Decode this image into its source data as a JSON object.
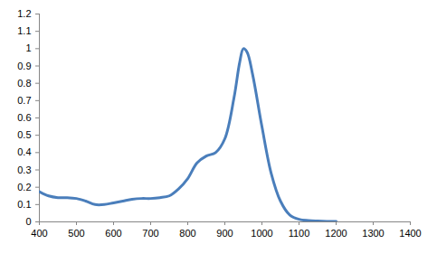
{
  "chart_data": {
    "type": "line",
    "x": [
      400,
      425,
      450,
      475,
      500,
      525,
      550,
      575,
      600,
      625,
      650,
      675,
      700,
      725,
      750,
      775,
      800,
      825,
      850,
      875,
      900,
      925,
      940,
      950,
      960,
      975,
      1000,
      1025,
      1050,
      1075,
      1100,
      1125,
      1150,
      1175,
      1200
    ],
    "values": [
      0.175,
      0.15,
      0.14,
      0.14,
      0.135,
      0.12,
      0.1,
      0.1,
      0.11,
      0.12,
      0.13,
      0.135,
      0.135,
      0.14,
      0.15,
      0.19,
      0.25,
      0.34,
      0.38,
      0.4,
      0.48,
      0.72,
      0.92,
      1.0,
      0.98,
      0.85,
      0.55,
      0.28,
      0.12,
      0.04,
      0.015,
      0.008,
      0.005,
      0.003,
      0.002
    ],
    "color": "#4a7ebb",
    "xlim": [
      400,
      1400
    ],
    "xticks": [
      400,
      500,
      600,
      700,
      800,
      900,
      1000,
      1100,
      1200,
      1300,
      1400
    ],
    "ylim": [
      0,
      1.2
    ],
    "yticks": [
      0,
      0.1,
      0.2,
      0.3,
      0.4,
      0.5,
      0.6,
      0.7,
      0.8,
      0.9,
      1,
      1.1,
      1.2
    ],
    "grid": false
  }
}
